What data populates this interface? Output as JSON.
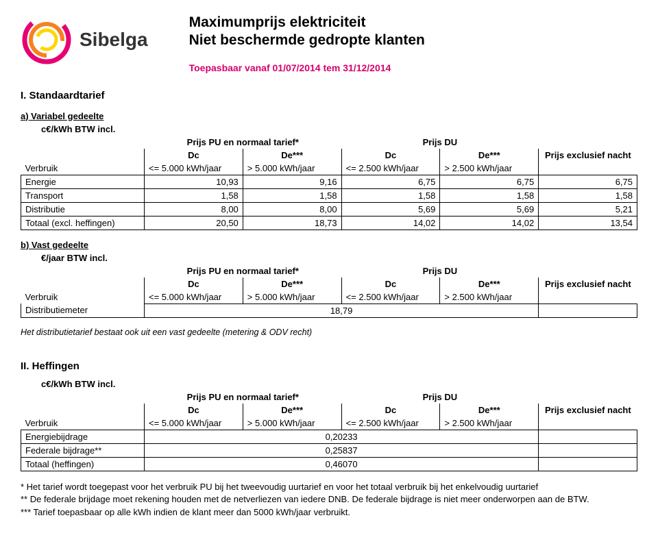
{
  "company": "Sibelga",
  "logo_colors": {
    "outer": "#e60073",
    "mid": "#f58220",
    "inner": "#ffd500"
  },
  "title_line1": "Maximumprijs elektriciteit",
  "title_line2": "Niet beschermde gedropte klanten",
  "applicable": "Toepasbaar vanaf 01/07/2014 tem 31/12/2014",
  "section1": "I. Standaardtarief",
  "sub_a": "a) Variabel gedeelte",
  "sub_b": "b) Vast gedeelte",
  "section2": "II. Heffingen",
  "unit_ckwh": "c€/kWh BTW incl.",
  "unit_year": "€/jaar BTW incl.",
  "hdr_pu": "Prijs PU en normaal tarief*",
  "hdr_du": "Prijs DU",
  "hdr_night": "Prijs exclusief nacht",
  "dc": "Dc",
  "de": "De***",
  "verbruik": "Verbruik",
  "cons": {
    "c1": "<= 5.000 kWh/jaar",
    "c2": "> 5.000 kWh/jaar",
    "c3": "<= 2.500 kWh/jaar",
    "c4": "> 2.500 kWh/jaar"
  },
  "tableA": {
    "rows": [
      {
        "label": "Energie",
        "v": [
          "10,93",
          "9,16",
          "6,75",
          "6,75",
          "6,75"
        ]
      },
      {
        "label": "Transport",
        "v": [
          "1,58",
          "1,58",
          "1,58",
          "1,58",
          "1,58"
        ]
      },
      {
        "label": "Distributie",
        "v": [
          "8,00",
          "8,00",
          "5,69",
          "5,69",
          "5,21"
        ]
      },
      {
        "label": "Totaal (excl. heffingen)",
        "v": [
          "20,50",
          "18,73",
          "14,02",
          "14,02",
          "13,54"
        ]
      }
    ]
  },
  "tableB": {
    "label": "Distributiemeter",
    "value": "18,79"
  },
  "note_b": "Het distributietarief bestaat ook uit een vast gedeelte (metering & ODV recht)",
  "tableC": {
    "rows": [
      {
        "label": "Energiebijdrage",
        "value": "0,20233"
      },
      {
        "label": "Federale bijdrage**",
        "value": "0,25837"
      },
      {
        "label": "Totaal (heffingen)",
        "value": "0,46070"
      }
    ]
  },
  "footnotes": [
    "* Het tarief wordt toegepast voor het verbruik PU bij het tweevoudig uurtarief en voor het totaal verbruik bij het enkelvoudig uurtarief",
    "** De federale brijdage moet rekening houden met de netverliezen van iedere DNB. De federale bijdrage is niet meer onderworpen aan de BTW.",
    "*** Tarief toepasbaar op alle kWh indien de klant meer dan 5000 kWh/jaar verbruikt."
  ]
}
